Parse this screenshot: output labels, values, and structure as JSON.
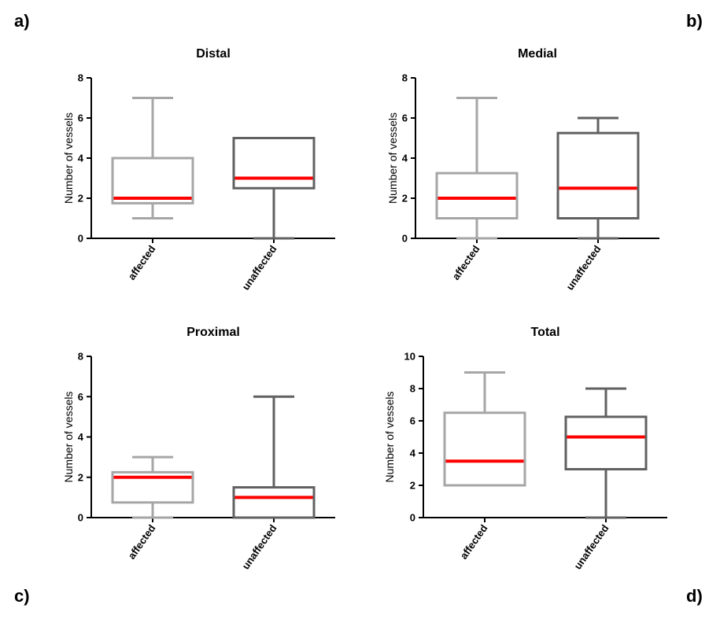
{
  "panel_labels": [
    "a)",
    "b)",
    "c)",
    "d)"
  ],
  "colors": {
    "affected": "#a6a6a6",
    "unaffected": "#616161",
    "median": "#ff0000",
    "axis": "#000000"
  },
  "chart_data": [
    {
      "type": "box",
      "title": "Distal",
      "ylabel": "Number of vessels",
      "xlabel": "",
      "ylim": [
        0,
        8
      ],
      "yticks": [
        0,
        2,
        4,
        6,
        8
      ],
      "categories": [
        "affected",
        "unaffected"
      ],
      "boxes": [
        {
          "name": "affected",
          "min": 1,
          "q1": 1.75,
          "median": 2,
          "q3": 4,
          "max": 7
        },
        {
          "name": "unaffected",
          "min": 0,
          "q1": 2.5,
          "median": 3,
          "q3": 5,
          "max": 5
        }
      ]
    },
    {
      "type": "box",
      "title": "Medial",
      "ylabel": "Number of vessels",
      "xlabel": "",
      "ylim": [
        0,
        8
      ],
      "yticks": [
        0,
        2,
        4,
        6,
        8
      ],
      "categories": [
        "affected",
        "unaffected"
      ],
      "boxes": [
        {
          "name": "affected",
          "min": 0,
          "q1": 1,
          "median": 2,
          "q3": 3.25,
          "max": 7
        },
        {
          "name": "unaffected",
          "min": 0,
          "q1": 1,
          "median": 2.5,
          "q3": 5.25,
          "max": 6
        }
      ]
    },
    {
      "type": "box",
      "title": "Proximal",
      "ylabel": "Number of vessels",
      "xlabel": "",
      "ylim": [
        0,
        8
      ],
      "yticks": [
        0,
        2,
        4,
        6,
        8
      ],
      "categories": [
        "affected",
        "unaffected"
      ],
      "boxes": [
        {
          "name": "affected",
          "min": 0,
          "q1": 0.75,
          "median": 2,
          "q3": 2.25,
          "max": 3
        },
        {
          "name": "unaffected",
          "min": 0,
          "q1": 0,
          "median": 1,
          "q3": 1.5,
          "max": 6
        }
      ]
    },
    {
      "type": "box",
      "title": "Total",
      "ylabel": "Number of vessels",
      "xlabel": "",
      "ylim": [
        0,
        10
      ],
      "yticks": [
        0,
        2,
        4,
        6,
        8,
        10
      ],
      "categories": [
        "affected",
        "unaffected"
      ],
      "boxes": [
        {
          "name": "affected",
          "min": 2,
          "q1": 2,
          "median": 3.5,
          "q3": 6.5,
          "max": 9
        },
        {
          "name": "unaffected",
          "min": 0,
          "q1": 3,
          "median": 5,
          "q3": 6.25,
          "max": 8
        }
      ]
    }
  ]
}
